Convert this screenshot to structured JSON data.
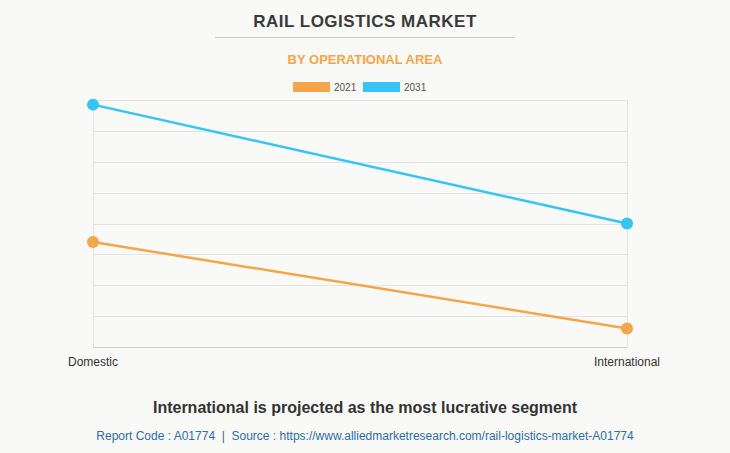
{
  "chart_data": {
    "type": "line",
    "title": "RAIL LOGISTICS MARKET",
    "subtitle": "BY OPERATIONAL AREA",
    "categories": [
      "Domestic",
      "International"
    ],
    "series": [
      {
        "name": "2021",
        "color": "#f5a54a",
        "values": [
          3.4,
          0.6
        ],
        "marker": "circle"
      },
      {
        "name": "2031",
        "color": "#35c4f5",
        "values": [
          7.85,
          4.0
        ],
        "marker": "circle"
      }
    ],
    "ylim": [
      0,
      8
    ],
    "yticks": [
      0,
      1,
      2,
      3,
      4,
      5,
      6,
      7,
      8
    ],
    "grid": true,
    "tick_labels": "x",
    "legend": "top",
    "caption": "International is projected as the most lucrative segment",
    "source": "Report Code : A01774  |  Source : https://www.alliedmarketresearch.com/rail-logistics-market-A01774"
  }
}
